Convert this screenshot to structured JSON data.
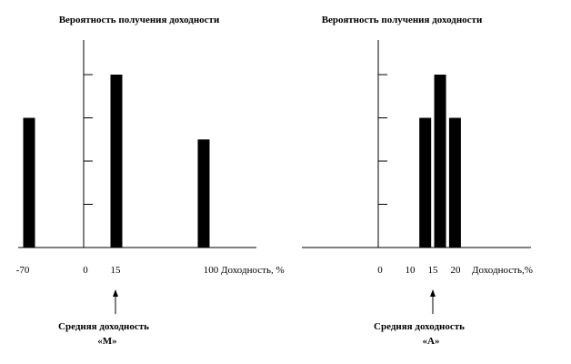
{
  "chart_data": [
    {
      "type": "bar",
      "title": "Вероятность получения доходности",
      "xlabel": "Доходность, %",
      "x_ticks": [
        "-70",
        "0",
        "15",
        "100"
      ],
      "x": [
        -70,
        15,
        100
      ],
      "values": [
        3,
        4,
        2.5
      ],
      "ylim": [
        0,
        5
      ],
      "mean_arrow_at": 15,
      "caption_line1": "Средняя доходность",
      "caption_line2": "«М»"
    },
    {
      "type": "bar",
      "title": "Вероятность получения доходности",
      "xlabel": "Доходность,%",
      "x_ticks": [
        "0",
        "10",
        "15",
        "20"
      ],
      "x": [
        10,
        15,
        20
      ],
      "values": [
        3,
        4,
        3
      ],
      "ylim": [
        0,
        5
      ],
      "mean_arrow_at": 15,
      "caption_line1": "Средняя доходность",
      "caption_line2": "«А»"
    }
  ],
  "colors": {
    "bar": "#000000",
    "axis": "#000000"
  }
}
